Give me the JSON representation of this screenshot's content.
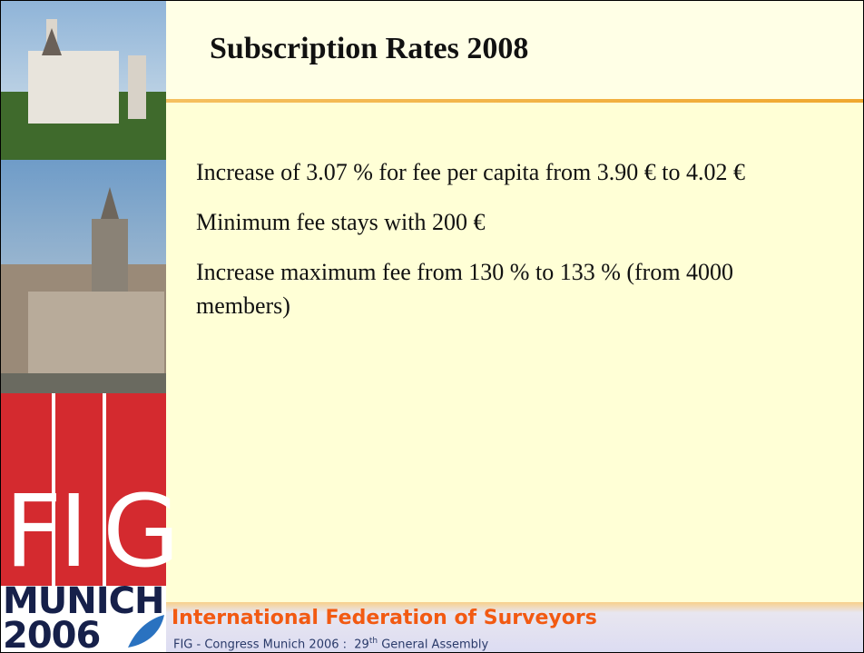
{
  "header": {
    "title": "Subscription Rates 2008"
  },
  "body": {
    "items": [
      "Increase of 3.07 % for fee per capita from 3.90 € to 4.02 €",
      "Minimum fee stays with 200 €",
      "Increase maximum fee from 130 % to 133 % (from 4000 members)"
    ]
  },
  "sidebar": {
    "logo_letters": [
      "F",
      "I",
      "G"
    ],
    "city": "MUNICH",
    "year": "2006"
  },
  "footer": {
    "organization": "International Federation of Surveyors",
    "event_prefix": "FIG - Congress Munich 2006 :  29",
    "event_sup": "th",
    "event_suffix": " General Assembly"
  }
}
